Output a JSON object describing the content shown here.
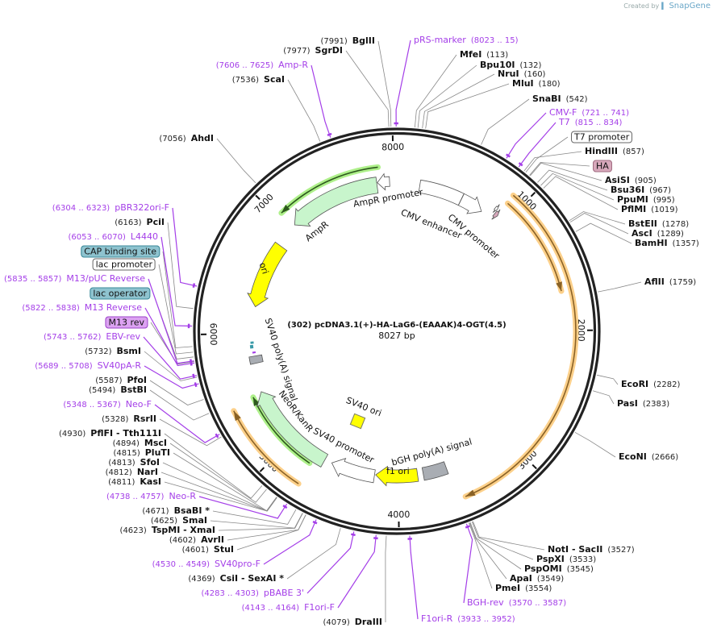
{
  "logo": {
    "prefix": "Created by",
    "brand": "SnapGene"
  },
  "plasmid": {
    "name": "(302) pcDNA3.1(+)-HA-LaG6-(EAAAK)4-OGT(4.5)",
    "size_label": "8027 bp",
    "length_bp": 8027
  },
  "ticks": [
    "1000",
    "2000",
    "3000",
    "4000",
    "5000",
    "6000",
    "7000",
    "8000"
  ],
  "labels": [
    {
      "t": "primer",
      "name": "pRS-marker",
      "pos": "(8023 .. 15)"
    },
    {
      "t": "enzyme",
      "name": "MfeI",
      "pos": "(113)"
    },
    {
      "t": "enzyme",
      "name": "Bpu10I",
      "pos": "(132)"
    },
    {
      "t": "enzyme",
      "name": "NruI",
      "pos": "(160)"
    },
    {
      "t": "enzyme",
      "name": "MluI",
      "pos": "(180)"
    },
    {
      "t": "enzyme",
      "name": "SnaBI",
      "pos": "(542)"
    },
    {
      "t": "primer",
      "name": "CMV-F",
      "pos": "(721 .. 741)"
    },
    {
      "t": "primer",
      "name": "T7",
      "pos": "(815 .. 834)"
    },
    {
      "t": "box",
      "name": "T7 promoter",
      "bp": 870
    },
    {
      "t": "enzyme",
      "name": "HindIII",
      "pos": "(857)"
    },
    {
      "t": "box",
      "name": "HA",
      "bp": 900,
      "cls": "box-ha"
    },
    {
      "t": "enzyme",
      "name": "AsiSI",
      "pos": "(905)"
    },
    {
      "t": "enzyme",
      "name": "Bsu36I",
      "pos": "(967)"
    },
    {
      "t": "enzyme",
      "name": "PpuMI",
      "pos": "(995)"
    },
    {
      "t": "enzyme",
      "name": "PflMI",
      "pos": "(1019)"
    },
    {
      "t": "enzyme",
      "name": "BstEII",
      "pos": "(1278)"
    },
    {
      "t": "enzyme",
      "name": "AscI",
      "pos": "(1289)"
    },
    {
      "t": "enzyme",
      "name": "BamHI",
      "pos": "(1357)"
    },
    {
      "t": "enzyme",
      "name": "AflII",
      "pos": "(1759)"
    },
    {
      "t": "enzyme",
      "name": "EcoRI",
      "pos": "(2282)"
    },
    {
      "t": "enzyme",
      "name": "PasI",
      "pos": "(2383)"
    },
    {
      "t": "enzyme",
      "name": "EcoNI",
      "pos": "(2666)"
    },
    {
      "t": "enzyme",
      "name": "NotI  - SacII",
      "pos": "(3527)"
    },
    {
      "t": "enzyme",
      "name": "PspXI",
      "pos": "(3533)"
    },
    {
      "t": "enzyme",
      "name": "PspOMI",
      "pos": "(3545)"
    },
    {
      "t": "enzyme",
      "name": "ApaI",
      "pos": "(3549)"
    },
    {
      "t": "enzyme",
      "name": "PmeI",
      "pos": "(3554)"
    },
    {
      "t": "primer",
      "name": "BGH-rev",
      "pos": "(3570 .. 3587)"
    },
    {
      "t": "primer",
      "name": "F1ori-R",
      "pos": "(3933 .. 3952)"
    },
    {
      "t": "enzyme",
      "name": "DraIII",
      "pos": "(4079)"
    },
    {
      "t": "primer",
      "name": "F1ori-F",
      "pos": "(4143 .. 4164)"
    },
    {
      "t": "primer",
      "name": "pBABE 3'",
      "pos": "(4283 .. 4303)"
    },
    {
      "t": "enzyme",
      "name": "CsiI  - SexAI *",
      "pos": "(4369)"
    },
    {
      "t": "primer",
      "name": "SV40pro-F",
      "pos": "(4530 .. 4549)"
    },
    {
      "t": "enzyme",
      "name": "StuI",
      "pos": "(4601)"
    },
    {
      "t": "enzyme",
      "name": "AvrII",
      "pos": "(4602)"
    },
    {
      "t": "enzyme",
      "name": "TspMI  - XmaI",
      "pos": "(4623)"
    },
    {
      "t": "enzyme",
      "name": "SmaI",
      "pos": "(4625)"
    },
    {
      "t": "enzyme",
      "name": "BsaBI *",
      "pos": "(4671)"
    },
    {
      "t": "primer",
      "name": "Neo-R",
      "pos": "(4738 .. 4757)"
    },
    {
      "t": "enzyme",
      "name": "KasI",
      "pos": "(4811)"
    },
    {
      "t": "enzyme",
      "name": "NarI",
      "pos": "(4812)"
    },
    {
      "t": "enzyme",
      "name": "SfoI",
      "pos": "(4813)"
    },
    {
      "t": "enzyme",
      "name": "PluTI",
      "pos": "(4815)"
    },
    {
      "t": "enzyme",
      "name": "MscI",
      "pos": "(4894)"
    },
    {
      "t": "enzyme",
      "name": "PflFI  - Tth111I",
      "pos": "(4930)"
    },
    {
      "t": "enzyme",
      "name": "RsrII",
      "pos": "(5328)"
    },
    {
      "t": "primer",
      "name": "Neo-F",
      "pos": "(5348 .. 5367)"
    },
    {
      "t": "enzyme",
      "name": "BstBI",
      "pos": "(5494)"
    },
    {
      "t": "enzyme",
      "name": "PfoI",
      "pos": "(5587)"
    },
    {
      "t": "primer",
      "name": "SV40pA-R",
      "pos": "(5689 .. 5708)"
    },
    {
      "t": "enzyme",
      "name": "BsmI",
      "pos": "(5732)"
    },
    {
      "t": "primer",
      "name": "EBV-rev",
      "pos": "(5743 .. 5762)"
    },
    {
      "t": "box",
      "name": "M13 rev",
      "bp": 5830,
      "cls": "box-m13"
    },
    {
      "t": "primer",
      "name": "M13 Reverse",
      "pos": "(5822 .. 5838)"
    },
    {
      "t": "box",
      "name": "lac operator",
      "bp": 5860,
      "cls": "box-lacop"
    },
    {
      "t": "primer",
      "name": "M13/pUC Reverse",
      "pos": "(5835 .. 5857)"
    },
    {
      "t": "box",
      "name": "lac promoter",
      "bp": 5890
    },
    {
      "t": "box",
      "name": "CAP binding site",
      "bp": 5925,
      "cls": "box-cap"
    },
    {
      "t": "primer",
      "name": "L4440",
      "pos": "(6053 .. 6070)"
    },
    {
      "t": "enzyme",
      "name": "PciI",
      "pos": "(6163)"
    },
    {
      "t": "primer",
      "name": "pBR322ori-F",
      "pos": "(6304 .. 6323)"
    },
    {
      "t": "enzyme",
      "name": "AhdI",
      "pos": "(7056)"
    },
    {
      "t": "enzyme",
      "name": "ScaI",
      "pos": "(7536)"
    },
    {
      "t": "primer",
      "name": "Amp-R",
      "pos": "(7606 .. 7625)"
    },
    {
      "t": "enzyme",
      "name": "SgrDI",
      "pos": "(7977)"
    },
    {
      "t": "enzyme",
      "name": "BglII",
      "pos": "(7991)"
    }
  ],
  "features": [
    {
      "name": "AmpR promoter",
      "start": 7860,
      "end": 7965,
      "dir": -1,
      "color": "#ffffff"
    },
    {
      "name": "AmpR",
      "start": 7050,
      "end": 7855,
      "dir": -1,
      "color": "#c8f5cc"
    },
    {
      "name": "ori",
      "start": 6240,
      "end": 6830,
      "dir": -1,
      "color": "#ffff00"
    },
    {
      "name": "CMV enhancer",
      "start": 200,
      "end": 580,
      "dir": 0,
      "color": "#ffffff"
    },
    {
      "name": "CMV promoter",
      "start": 581,
      "end": 785,
      "dir": 1,
      "color": "#ffffff"
    },
    {
      "name": "T7 promoter",
      "start": 860,
      "end": 881,
      "dir": 1,
      "color": "#ffffff"
    },
    {
      "name": "HA",
      "start": 886,
      "end": 916,
      "dir": 1,
      "color": "#d7a8bb"
    },
    {
      "name": "SV40 poly(A) signal",
      "start": 5735,
      "end": 5800,
      "dir": 0,
      "color": "#a9adb3"
    },
    {
      "name": "NeoR/KanR",
      "start": 4665,
      "end": 5485,
      "dir": 1,
      "color": "#c8f5cc"
    },
    {
      "name": "SV40 promoter",
      "start": 4210,
      "end": 4600,
      "dir": 1,
      "color": "#ffffff"
    },
    {
      "name": "f1 ori",
      "start": 3830,
      "end": 4200,
      "dir": 1,
      "color": "#ffff00"
    },
    {
      "name": "bGH poly(A) signal",
      "start": 3570,
      "end": 3780,
      "dir": 0,
      "color": "#a9adb3"
    },
    {
      "name": "SV40 ori",
      "color": "#ffff00"
    }
  ]
}
